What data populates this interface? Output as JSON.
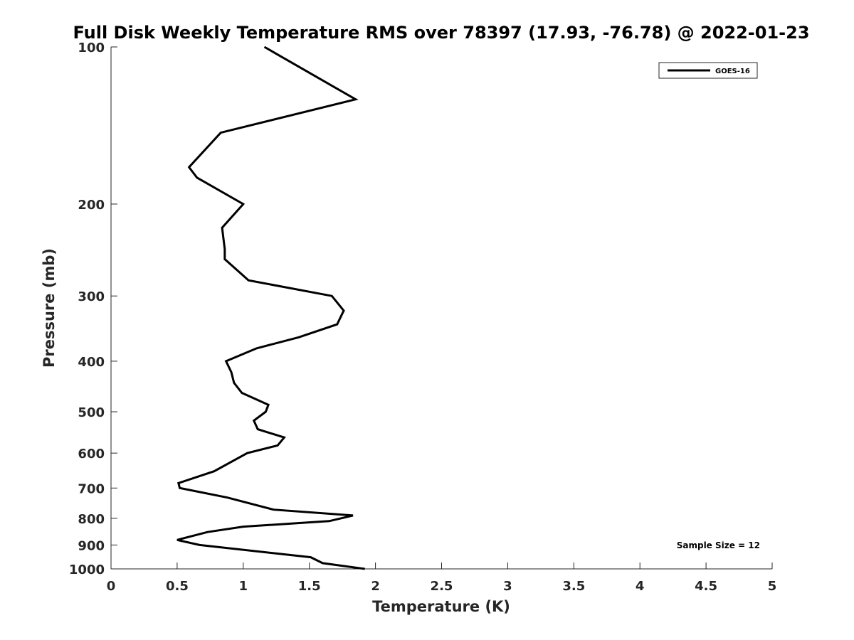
{
  "chart_data": {
    "type": "line",
    "title": "Full Disk Weekly Temperature RMS over 78397 (17.93, -76.78) @ 2022-01-23",
    "xlabel": "Temperature (K)",
    "ylabel": "Pressure (mb)",
    "xlim": [
      0,
      5
    ],
    "ylim": [
      100,
      1000
    ],
    "yscale": "log",
    "y_reversed": true,
    "grid": false,
    "legend_position": "top-right",
    "x_ticks": [
      {
        "value": 0,
        "label": "0"
      },
      {
        "value": 0.5,
        "label": "0.5"
      },
      {
        "value": 1,
        "label": "1"
      },
      {
        "value": 1.5,
        "label": "1.5"
      },
      {
        "value": 2,
        "label": "2"
      },
      {
        "value": 2.5,
        "label": "2.5"
      },
      {
        "value": 3,
        "label": "3"
      },
      {
        "value": 3.5,
        "label": "3.5"
      },
      {
        "value": 4,
        "label": "4"
      },
      {
        "value": 4.5,
        "label": "4.5"
      },
      {
        "value": 5,
        "label": "5"
      }
    ],
    "y_ticks": [
      {
        "value": 100,
        "label": "100"
      },
      {
        "value": 200,
        "label": "200"
      },
      {
        "value": 300,
        "label": "300"
      },
      {
        "value": 400,
        "label": "400"
      },
      {
        "value": 500,
        "label": "500"
      },
      {
        "value": 600,
        "label": "600"
      },
      {
        "value": 700,
        "label": "700"
      },
      {
        "value": 800,
        "label": "800"
      },
      {
        "value": 900,
        "label": "900"
      },
      {
        "value": 1000,
        "label": "1000"
      }
    ],
    "series": [
      {
        "name": "GOES-16",
        "color": "#000000",
        "x": [
          1.16,
          1.85,
          0.83,
          0.59,
          0.65,
          1.0,
          0.84,
          0.86,
          0.86,
          1.04,
          1.67,
          1.76,
          1.71,
          1.42,
          1.1,
          0.87,
          0.91,
          0.93,
          0.99,
          1.19,
          1.17,
          1.08,
          1.11,
          1.31,
          1.26,
          1.03,
          0.78,
          0.51,
          0.52,
          0.88,
          1.23,
          1.83,
          1.65,
          1.0,
          0.73,
          0.5,
          0.67,
          1.51,
          1.6,
          1.92
        ],
        "y": [
          100,
          126,
          146,
          170,
          178,
          200,
          222,
          244,
          255,
          280,
          300,
          320,
          340,
          360,
          378,
          400,
          420,
          440,
          460,
          485,
          500,
          520,
          540,
          560,
          580,
          600,
          650,
          685,
          700,
          730,
          770,
          790,
          810,
          830,
          850,
          880,
          900,
          950,
          975,
          1000
        ]
      }
    ],
    "annotations": [
      "Sample Size = 12"
    ]
  }
}
